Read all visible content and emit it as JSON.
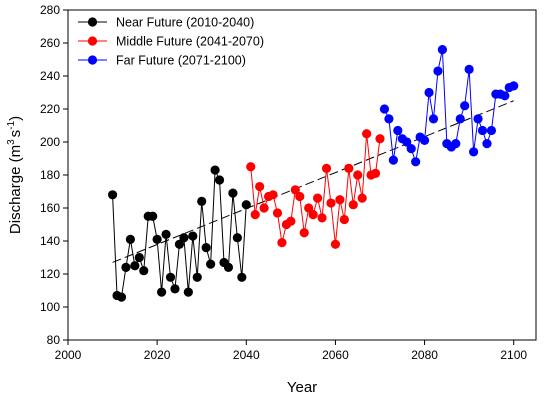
{
  "chart_data": {
    "type": "scatter",
    "xlabel": "Year",
    "ylabel_main": "Discharge (m",
    "ylabel_sup1": "3",
    "ylabel_mid": "s",
    "ylabel_sup2": "-1",
    "ylabel_end": ")",
    "xlim": [
      2000,
      2105
    ],
    "ylim": [
      80,
      280
    ],
    "xticks": [
      2000,
      2020,
      2040,
      2060,
      2080,
      2100
    ],
    "yticks": [
      80,
      100,
      120,
      140,
      160,
      180,
      200,
      220,
      240,
      260,
      280
    ],
    "grid": false,
    "legend_position": "top-left",
    "trendline": {
      "x": [
        2010,
        2100
      ],
      "y": [
        127,
        225
      ],
      "style": "dashed"
    },
    "series": [
      {
        "name": "Near Future (2010-2040)",
        "color": "#000000",
        "x": [
          2010,
          2011,
          2012,
          2013,
          2014,
          2015,
          2016,
          2017,
          2018,
          2019,
          2020,
          2021,
          2022,
          2023,
          2024,
          2025,
          2026,
          2027,
          2028,
          2029,
          2030,
          2031,
          2032,
          2033,
          2034,
          2035,
          2036,
          2037,
          2038,
          2039,
          2040
        ],
        "y": [
          168,
          107,
          106,
          124,
          141,
          125,
          130,
          122,
          155,
          155,
          141,
          109,
          144,
          118,
          111,
          138,
          142,
          109,
          143,
          118,
          164,
          136,
          126,
          183,
          177,
          127,
          124,
          169,
          142,
          118,
          162
        ]
      },
      {
        "name": "Middle Future (2041-2070)",
        "color": "#ff0000",
        "x": [
          2041,
          2042,
          2043,
          2044,
          2045,
          2046,
          2047,
          2048,
          2049,
          2050,
          2051,
          2052,
          2053,
          2054,
          2055,
          2056,
          2057,
          2058,
          2059,
          2060,
          2061,
          2062,
          2063,
          2064,
          2065,
          2066,
          2067,
          2068,
          2069,
          2070
        ],
        "y": [
          185,
          156,
          173,
          160,
          167,
          168,
          157,
          139,
          150,
          152,
          171,
          167,
          145,
          160,
          156,
          166,
          154,
          184,
          163,
          138,
          165,
          153,
          184,
          162,
          180,
          166,
          205,
          180,
          181,
          202
        ]
      },
      {
        "name": "Far Future (2071-2100)",
        "color": "#0000ff",
        "x": [
          2071,
          2072,
          2073,
          2074,
          2075,
          2076,
          2077,
          2078,
          2079,
          2080,
          2081,
          2082,
          2083,
          2084,
          2085,
          2086,
          2087,
          2088,
          2089,
          2090,
          2091,
          2092,
          2093,
          2094,
          2095,
          2096,
          2097,
          2098,
          2099,
          2100
        ],
        "y": [
          220,
          214,
          189,
          207,
          202,
          200,
          196,
          188,
          203,
          201,
          230,
          214,
          243,
          256,
          199,
          197,
          199,
          214,
          222,
          244,
          194,
          214,
          207,
          199,
          207,
          229,
          229,
          228,
          233,
          234
        ]
      }
    ]
  }
}
